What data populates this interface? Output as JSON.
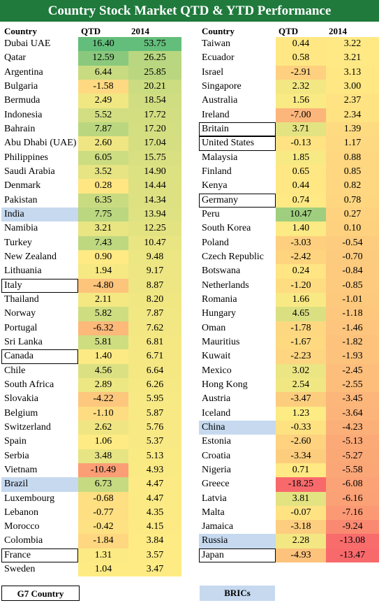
{
  "title": "Country Stock Market QTD & YTD Performance",
  "headers": {
    "country": "Country",
    "qtd": "QTD % Chg",
    "ytd": "2014 % Chg"
  },
  "legend": {
    "g7": "G7 Country",
    "bric": "BRICs"
  },
  "chart_data": {
    "type": "table",
    "columns": [
      "Country",
      "QTD % Chg",
      "2014 % Chg"
    ],
    "left": [
      {
        "name": "Dubai UAE",
        "qtd": "16.40",
        "ytd": "53.75",
        "group": ""
      },
      {
        "name": "Qatar",
        "qtd": "12.59",
        "ytd": "26.25",
        "group": ""
      },
      {
        "name": "Argentina",
        "qtd": "6.44",
        "ytd": "25.85",
        "group": ""
      },
      {
        "name": "Bulgaria",
        "qtd": "-1.58",
        "ytd": "20.21",
        "group": ""
      },
      {
        "name": "Bermuda",
        "qtd": "2.49",
        "ytd": "18.54",
        "group": ""
      },
      {
        "name": "Indonesia",
        "qtd": "5.52",
        "ytd": "17.72",
        "group": ""
      },
      {
        "name": "Bahrain",
        "qtd": "7.87",
        "ytd": "17.20",
        "group": ""
      },
      {
        "name": "Abu Dhabi (UAE)",
        "qtd": "2.60",
        "ytd": "17.04",
        "group": ""
      },
      {
        "name": "Philippines",
        "qtd": "6.05",
        "ytd": "15.75",
        "group": ""
      },
      {
        "name": "Saudi Arabia",
        "qtd": "3.52",
        "ytd": "14.90",
        "group": ""
      },
      {
        "name": "Denmark",
        "qtd": "0.28",
        "ytd": "14.44",
        "group": ""
      },
      {
        "name": "Pakistan",
        "qtd": "6.35",
        "ytd": "14.34",
        "group": ""
      },
      {
        "name": "India",
        "qtd": "7.75",
        "ytd": "13.94",
        "group": "bric"
      },
      {
        "name": "Namibia",
        "qtd": "3.21",
        "ytd": "12.25",
        "group": ""
      },
      {
        "name": "Turkey",
        "qtd": "7.43",
        "ytd": "10.47",
        "group": ""
      },
      {
        "name": "New Zealand",
        "qtd": "0.90",
        "ytd": "9.48",
        "group": ""
      },
      {
        "name": "Lithuania",
        "qtd": "1.94",
        "ytd": "9.17",
        "group": ""
      },
      {
        "name": "Italy",
        "qtd": "-4.80",
        "ytd": "8.87",
        "group": "g7"
      },
      {
        "name": "Thailand",
        "qtd": "2.11",
        "ytd": "8.20",
        "group": ""
      },
      {
        "name": "Norway",
        "qtd": "5.82",
        "ytd": "7.87",
        "group": ""
      },
      {
        "name": "Portugal",
        "qtd": "-6.32",
        "ytd": "7.62",
        "group": ""
      },
      {
        "name": "Sri Lanka",
        "qtd": "5.81",
        "ytd": "6.81",
        "group": ""
      },
      {
        "name": "Canada",
        "qtd": "1.40",
        "ytd": "6.71",
        "group": "g7"
      },
      {
        "name": "Chile",
        "qtd": "4.56",
        "ytd": "6.64",
        "group": ""
      },
      {
        "name": "South Africa",
        "qtd": "2.89",
        "ytd": "6.26",
        "group": ""
      },
      {
        "name": "Slovakia",
        "qtd": "-4.22",
        "ytd": "5.95",
        "group": ""
      },
      {
        "name": "Belgium",
        "qtd": "-1.10",
        "ytd": "5.87",
        "group": ""
      },
      {
        "name": "Switzerland",
        "qtd": "2.62",
        "ytd": "5.76",
        "group": ""
      },
      {
        "name": "Spain",
        "qtd": "1.06",
        "ytd": "5.37",
        "group": ""
      },
      {
        "name": "Serbia",
        "qtd": "3.48",
        "ytd": "5.13",
        "group": ""
      },
      {
        "name": "Vietnam",
        "qtd": "-10.49",
        "ytd": "4.93",
        "group": ""
      },
      {
        "name": "Brazil",
        "qtd": "6.73",
        "ytd": "4.47",
        "group": "bric"
      },
      {
        "name": "Luxembourg",
        "qtd": "-0.68",
        "ytd": "4.47",
        "group": ""
      },
      {
        "name": "Lebanon",
        "qtd": "-0.77",
        "ytd": "4.35",
        "group": ""
      },
      {
        "name": "Morocco",
        "qtd": "-0.42",
        "ytd": "4.15",
        "group": ""
      },
      {
        "name": "Colombia",
        "qtd": "-1.84",
        "ytd": "3.84",
        "group": ""
      },
      {
        "name": "France",
        "qtd": "1.31",
        "ytd": "3.57",
        "group": "g7"
      },
      {
        "name": "Sweden",
        "qtd": "1.04",
        "ytd": "3.47",
        "group": ""
      }
    ],
    "right": [
      {
        "name": "Taiwan",
        "qtd": "0.44",
        "ytd": "3.22",
        "group": ""
      },
      {
        "name": "Ecuador",
        "qtd": "0.58",
        "ytd": "3.21",
        "group": ""
      },
      {
        "name": "Israel",
        "qtd": "-2.91",
        "ytd": "3.13",
        "group": ""
      },
      {
        "name": "Singapore",
        "qtd": "2.32",
        "ytd": "3.00",
        "group": ""
      },
      {
        "name": "Australia",
        "qtd": "1.56",
        "ytd": "2.37",
        "group": ""
      },
      {
        "name": "Ireland",
        "qtd": "-7.00",
        "ytd": "2.34",
        "group": ""
      },
      {
        "name": "Britain",
        "qtd": "3.71",
        "ytd": "1.39",
        "group": "g7"
      },
      {
        "name": "United States",
        "qtd": "-0.13",
        "ytd": "1.17",
        "group": "g7"
      },
      {
        "name": "Malaysia",
        "qtd": "1.85",
        "ytd": "0.88",
        "group": ""
      },
      {
        "name": "Finland",
        "qtd": "0.65",
        "ytd": "0.85",
        "group": ""
      },
      {
        "name": "Kenya",
        "qtd": "0.44",
        "ytd": "0.82",
        "group": ""
      },
      {
        "name": "Germany",
        "qtd": "0.74",
        "ytd": "0.78",
        "group": "g7"
      },
      {
        "name": "Peru",
        "qtd": "10.47",
        "ytd": "0.27",
        "group": ""
      },
      {
        "name": "South Korea",
        "qtd": "1.40",
        "ytd": "0.10",
        "group": ""
      },
      {
        "name": "Poland",
        "qtd": "-3.03",
        "ytd": "-0.54",
        "group": ""
      },
      {
        "name": "Czech Republic",
        "qtd": "-2.42",
        "ytd": "-0.70",
        "group": ""
      },
      {
        "name": "Botswana",
        "qtd": "0.24",
        "ytd": "-0.84",
        "group": ""
      },
      {
        "name": "Netherlands",
        "qtd": "-1.20",
        "ytd": "-0.85",
        "group": ""
      },
      {
        "name": "Romania",
        "qtd": "1.66",
        "ytd": "-1.01",
        "group": ""
      },
      {
        "name": "Hungary",
        "qtd": "4.65",
        "ytd": "-1.18",
        "group": ""
      },
      {
        "name": "Oman",
        "qtd": "-1.78",
        "ytd": "-1.46",
        "group": ""
      },
      {
        "name": "Mauritius",
        "qtd": "-1.67",
        "ytd": "-1.82",
        "group": ""
      },
      {
        "name": "Kuwait",
        "qtd": "-2.23",
        "ytd": "-1.93",
        "group": ""
      },
      {
        "name": "Mexico",
        "qtd": "3.02",
        "ytd": "-2.45",
        "group": ""
      },
      {
        "name": "Hong Kong",
        "qtd": "2.54",
        "ytd": "-2.55",
        "group": ""
      },
      {
        "name": "Austria",
        "qtd": "-3.47",
        "ytd": "-3.45",
        "group": ""
      },
      {
        "name": "Iceland",
        "qtd": "1.23",
        "ytd": "-3.64",
        "group": ""
      },
      {
        "name": "China",
        "qtd": "-0.33",
        "ytd": "-4.23",
        "group": "bric"
      },
      {
        "name": "Estonia",
        "qtd": "-2.60",
        "ytd": "-5.13",
        "group": ""
      },
      {
        "name": "Croatia",
        "qtd": "-3.34",
        "ytd": "-5.27",
        "group": ""
      },
      {
        "name": "Nigeria",
        "qtd": "0.71",
        "ytd": "-5.58",
        "group": ""
      },
      {
        "name": "Greece",
        "qtd": "-18.25",
        "ytd": "-6.08",
        "group": ""
      },
      {
        "name": "Latvia",
        "qtd": "3.81",
        "ytd": "-6.16",
        "group": ""
      },
      {
        "name": "Malta",
        "qtd": "-0.07",
        "ytd": "-7.16",
        "group": ""
      },
      {
        "name": "Jamaica",
        "qtd": "-3.18",
        "ytd": "-9.24",
        "group": ""
      },
      {
        "name": "Russia",
        "qtd": "2.28",
        "ytd": "-13.08",
        "group": "bric"
      },
      {
        "name": "Japan",
        "qtd": "-4.93",
        "ytd": "-13.47",
        "group": "g7"
      }
    ]
  }
}
